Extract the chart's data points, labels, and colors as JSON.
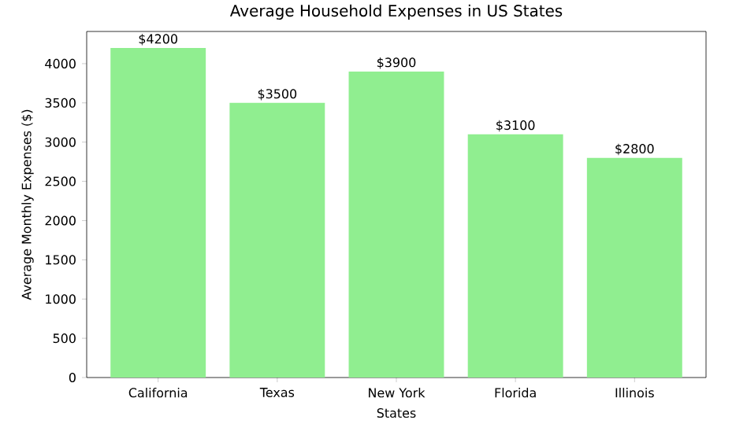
{
  "chart_data": {
    "type": "bar",
    "title": "Average Household Expenses in US States",
    "xlabel": "States",
    "ylabel": "Average Monthly Expenses ($)",
    "categories": [
      "California",
      "Texas",
      "New York",
      "Florida",
      "Illinois"
    ],
    "values": [
      4200,
      3500,
      3900,
      3100,
      2800
    ],
    "value_labels": [
      "$4200",
      "$3500",
      "$3900",
      "$3100",
      "$2800"
    ],
    "color": "#90ee90",
    "ylim": [
      0,
      4410
    ],
    "yticks": [
      0,
      500,
      1000,
      1500,
      2000,
      2500,
      3000,
      3500,
      4000
    ]
  }
}
